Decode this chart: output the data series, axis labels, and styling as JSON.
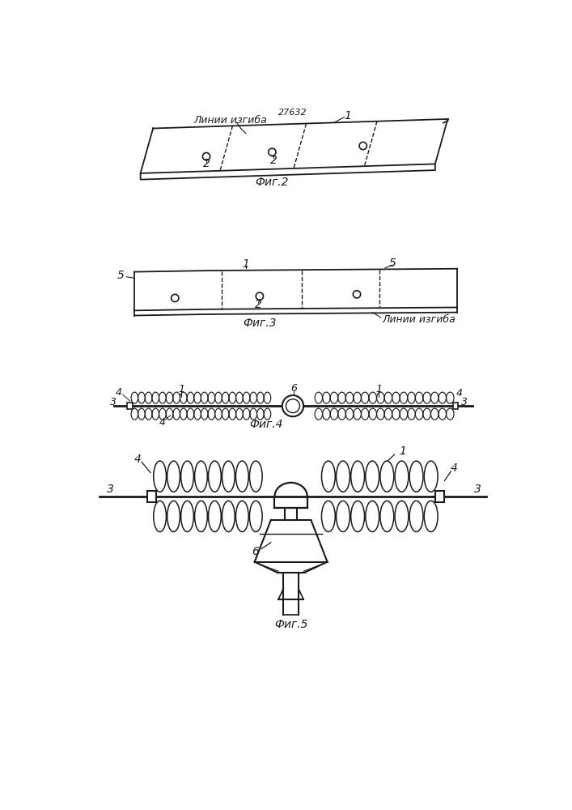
{
  "bg_color": "#ffffff",
  "line_color": "#1a1a1a",
  "fig2_caption": "Фиг.2",
  "fig3_caption": "Фиг.3",
  "fig4_caption": "Фиг.4",
  "fig5_caption": "Фиг.5",
  "header_text": "27632",
  "label_linii_izgiba_1": "Линии изгиба",
  "label_linii_izgiba_2": "Линии изгиба"
}
